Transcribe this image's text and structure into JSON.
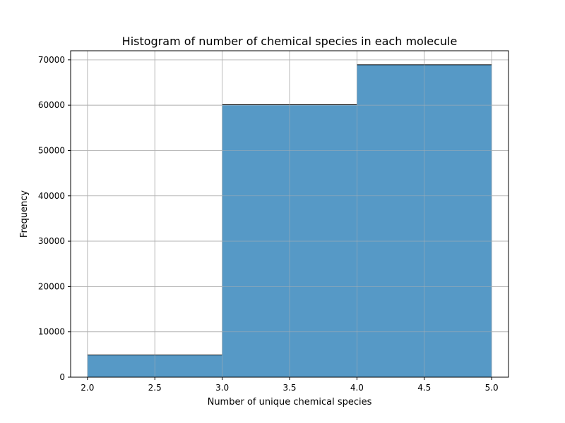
{
  "chart_data": {
    "type": "bar",
    "title": "Histogram of number of chemical species in each molecule",
    "xlabel": "Number of unique chemical species",
    "ylabel": "Frequency",
    "bins": [
      {
        "x0": 2.0,
        "x1": 3.0,
        "value": 4900
      },
      {
        "x0": 3.0,
        "x1": 4.0,
        "value": 60100
      },
      {
        "x0": 4.0,
        "x1": 5.0,
        "value": 68900
      }
    ],
    "xlim": [
      1.875,
      5.125
    ],
    "ylim": [
      0,
      72000
    ],
    "xticks": [
      2.0,
      2.5,
      3.0,
      3.5,
      4.0,
      4.5,
      5.0
    ],
    "xtick_labels": [
      "2.0",
      "2.5",
      "3.0",
      "3.5",
      "4.0",
      "4.5",
      "5.0"
    ],
    "yticks": [
      0,
      10000,
      20000,
      30000,
      40000,
      50000,
      60000,
      70000
    ],
    "ytick_labels": [
      "0",
      "10000",
      "20000",
      "30000",
      "40000",
      "50000",
      "60000",
      "70000"
    ],
    "grid": true,
    "colors": {
      "bar_fill": "#5699c6",
      "bar_edge": "#000000",
      "grid": "#b0b0b0",
      "axis": "#000000"
    }
  }
}
